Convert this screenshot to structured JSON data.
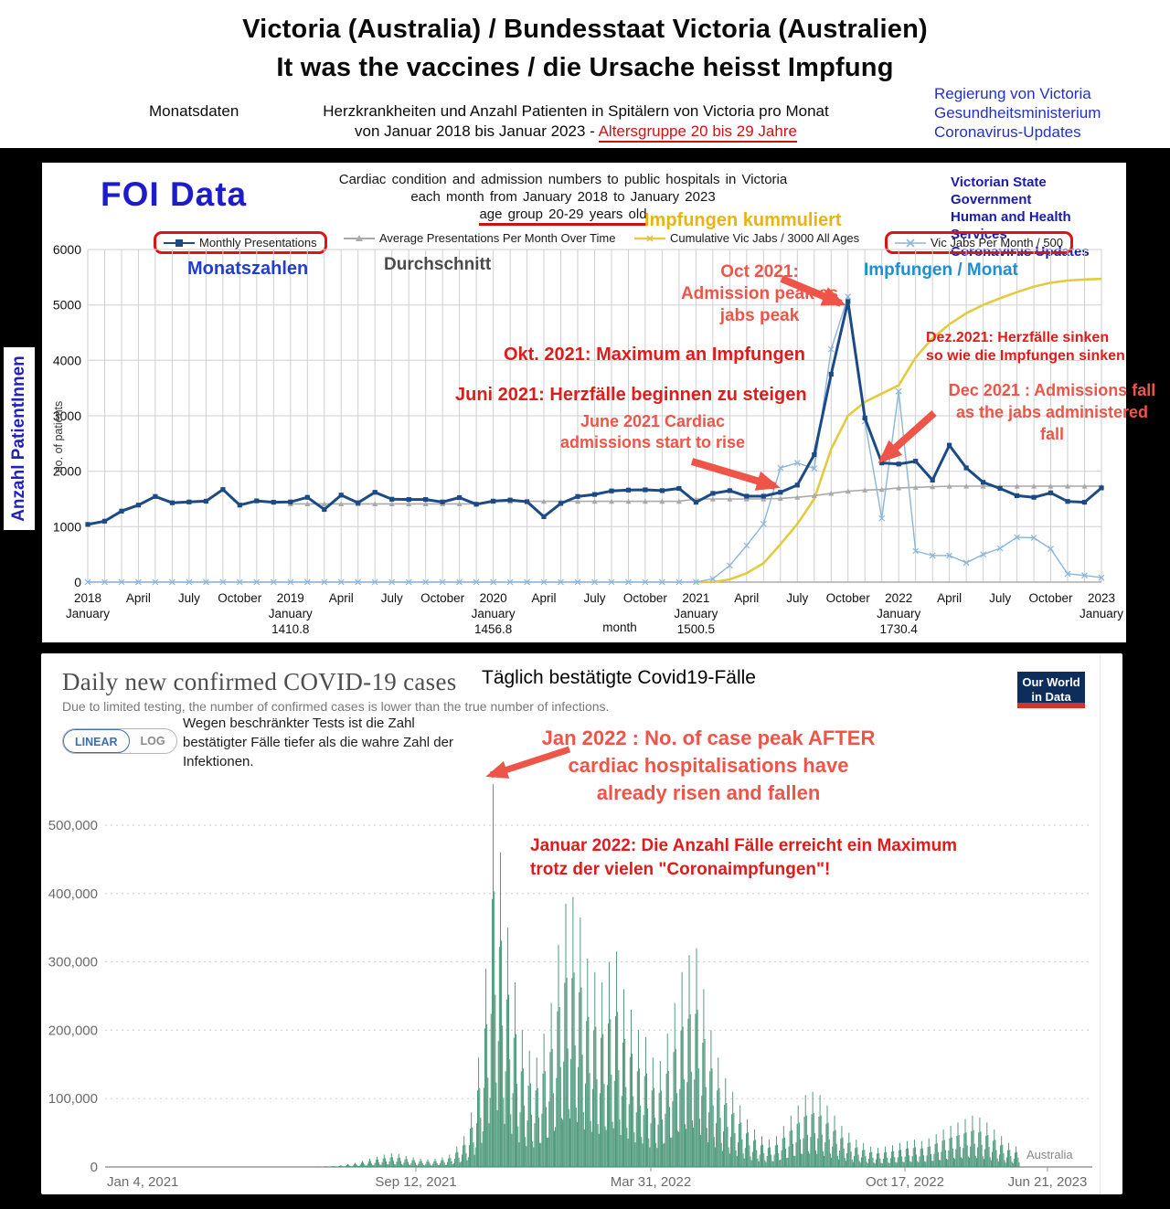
{
  "header": {
    "title_line1": "Victoria (Australia) / Bundesstaat Victoria (Australien)",
    "title_line2": "It was the vaccines / die Ursache heisst Impfung",
    "left_label": "Monatsdaten",
    "center_line1": "Herzkrankheiten und Anzahl Patienten in Spitälern von Victoria pro Monat",
    "center_line2_prefix": "von Januar 2018 bis Januar 2023 - ",
    "center_line2_red": "Altersgruppe 20 bis 29 Jahre",
    "right_lines": [
      "Regierung von Victoria",
      "Gesundheitsministerium",
      "Coronavirus-Updates"
    ]
  },
  "chart1": {
    "foi_label": "FOI Data",
    "title_lines": [
      "Cardiac condition and admission numbers to public hospitals in Victoria",
      "each month from January 2018 to January 2023",
      "age group 20-29 years old"
    ],
    "gov_lines": [
      "Victorian State Government",
      "Human and Health Services",
      "Coronavirus Updates"
    ],
    "impfungen_kummuliert": "Impfungen kummuliert",
    "legend": [
      {
        "label": "Monthly Presentations",
        "color": "#1b4a85",
        "boxed": true
      },
      {
        "label": "Average Presentations Per Month Over Time",
        "color": "#a9a9a9",
        "boxed": false
      },
      {
        "label": "Cumulative Vic Jabs / 3000 All Ages",
        "color": "#e3cb3f",
        "boxed": false
      },
      {
        "label": "Vic Jabs Per Month / 500",
        "color": "#8ab6d8",
        "boxed": true
      }
    ],
    "plot_labels": {
      "monatszahlen": "Monatszahlen",
      "durchschnitt": "Durchschnitt",
      "impfungen_monat": "Impfungen / Monat"
    },
    "annotations": {
      "oct_en": [
        "Oct 2021:",
        "Admission peak as",
        "jabs peak"
      ],
      "okt_de": "Okt. 2021: Maximum an Impfungen",
      "juni_de": "Juni 2021: Herzfälle beginnen zu steigen",
      "june_en": [
        "June 2021 Cardiac",
        "admissions start to rise"
      ],
      "dez_de": [
        "Dez.2021: Herzfälle sinken",
        "so wie die Impfungen sinken"
      ],
      "dec_en": [
        "Dec 2021 : Admissions fall",
        "as the jabs administered",
        "fall"
      ]
    },
    "left_vertical_label": "Anzahl PatientInnen"
  },
  "chart2": {
    "title": "Daily new confirmed COVID-19 cases",
    "title_de": "Täglich bestätigte Covid19-Fälle",
    "subtitle": "Due to limited testing, the number of confirmed cases is lower than the true number of infections.",
    "note_de": "Wegen beschränkter Tests ist die Zahl bestätigter Fälle tiefer als die wahre Zahl der Infektionen.",
    "owid_logo": [
      "Our World",
      "in Data"
    ],
    "toggle": {
      "linear": "LINEAR",
      "log": "LOG"
    },
    "annotations": {
      "jan_en": [
        "Jan 2022 : No. of case peak AFTER",
        "cardiac hospitalisations have",
        "already risen and fallen"
      ],
      "jan_de": [
        "Januar 2022: Die Anzahl Fälle erreicht ein Maximum",
        "trotz der vielen \"Coronaimpfungen\"!"
      ]
    }
  },
  "chart_data": [
    {
      "type": "line",
      "title": "Cardiac condition and admission numbers to public hospitals in Victoria each month from January 2018 to January 2023, age group 20-29 years old",
      "xlabel": "month",
      "ylabel": "no. of patients",
      "ylim": [
        0,
        6000
      ],
      "y_ticks": [
        0,
        1000,
        2000,
        3000,
        4000,
        5000,
        6000
      ],
      "x_months": [
        "2018-01",
        "2018-02",
        "2018-03",
        "2018-04",
        "2018-05",
        "2018-06",
        "2018-07",
        "2018-08",
        "2018-09",
        "2018-10",
        "2018-11",
        "2018-12",
        "2019-01",
        "2019-02",
        "2019-03",
        "2019-04",
        "2019-05",
        "2019-06",
        "2019-07",
        "2019-08",
        "2019-09",
        "2019-10",
        "2019-11",
        "2019-12",
        "2020-01",
        "2020-02",
        "2020-03",
        "2020-04",
        "2020-05",
        "2020-06",
        "2020-07",
        "2020-08",
        "2020-09",
        "2020-10",
        "2020-11",
        "2020-12",
        "2021-01",
        "2021-02",
        "2021-03",
        "2021-04",
        "2021-05",
        "2021-06",
        "2021-07",
        "2021-08",
        "2021-09",
        "2021-10",
        "2021-11",
        "2021-12",
        "2022-01",
        "2022-02",
        "2022-03",
        "2022-04",
        "2022-05",
        "2022-06",
        "2022-07",
        "2022-08",
        "2022-09",
        "2022-10",
        "2022-11",
        "2022-12",
        "2023-01"
      ],
      "x_ticks": [
        {
          "i": 0,
          "l1": "2018",
          "l2": "January"
        },
        {
          "i": 3,
          "l1": "April"
        },
        {
          "i": 6,
          "l1": "July"
        },
        {
          "i": 9,
          "l1": "October"
        },
        {
          "i": 12,
          "l1": "2019",
          "l2": "January",
          "l3": "1410.8"
        },
        {
          "i": 15,
          "l1": "April"
        },
        {
          "i": 18,
          "l1": "July"
        },
        {
          "i": 21,
          "l1": "October"
        },
        {
          "i": 24,
          "l1": "2020",
          "l2": "January",
          "l3": "1456.8"
        },
        {
          "i": 27,
          "l1": "April"
        },
        {
          "i": 30,
          "l1": "July"
        },
        {
          "i": 33,
          "l1": "October"
        },
        {
          "i": 36,
          "l1": "2021",
          "l2": "January",
          "l3": "1500.5"
        },
        {
          "i": 39,
          "l1": "April"
        },
        {
          "i": 42,
          "l1": "July"
        },
        {
          "i": 45,
          "l1": "October"
        },
        {
          "i": 48,
          "l1": "2022",
          "l2": "January",
          "l3": "1730.4"
        },
        {
          "i": 51,
          "l1": "April"
        },
        {
          "i": 54,
          "l1": "July"
        },
        {
          "i": 57,
          "l1": "October"
        },
        {
          "i": 60,
          "l1": "2023",
          "l2": "January"
        }
      ],
      "series": [
        {
          "name": "Monthly Presentations",
          "color": "#1b4a85",
          "values": [
            1040,
            1100,
            1280,
            1390,
            1545,
            1430,
            1445,
            1460,
            1670,
            1390,
            1465,
            1440,
            1445,
            1530,
            1310,
            1570,
            1430,
            1620,
            1495,
            1490,
            1490,
            1445,
            1525,
            1405,
            1460,
            1480,
            1450,
            1180,
            1420,
            1545,
            1580,
            1645,
            1660,
            1665,
            1650,
            1690,
            1440,
            1600,
            1650,
            1550,
            1550,
            1620,
            1750,
            2300,
            3750,
            5060,
            2960,
            2150,
            2130,
            2180,
            1840,
            2470,
            2060,
            1800,
            1690,
            1560,
            1530,
            1610,
            1455,
            1440,
            1700
          ]
        },
        {
          "name": "Average Presentations Per Month Over Time",
          "color": "#a9a9a9",
          "values": [
            null,
            null,
            null,
            null,
            null,
            null,
            null,
            null,
            null,
            null,
            null,
            null,
            1411,
            1411,
            1411,
            1411,
            1411,
            1411,
            1411,
            1411,
            1411,
            1411,
            1411,
            1411,
            1457,
            1457,
            1457,
            1457,
            1457,
            1457,
            1457,
            1457,
            1457,
            1457,
            1457,
            1457,
            1500,
            1500,
            1500,
            1500,
            1500,
            1510,
            1530,
            1560,
            1600,
            1640,
            1660,
            1670,
            1700,
            1710,
            1720,
            1730,
            1730,
            1730,
            1730,
            1730,
            1730,
            1730,
            1730,
            1730,
            1730
          ]
        },
        {
          "name": "Cumulative Vic Jabs / 3000 All Ages",
          "color": "#e3cb3f",
          "values": [
            null,
            null,
            null,
            null,
            null,
            null,
            null,
            null,
            null,
            null,
            null,
            null,
            null,
            null,
            null,
            null,
            null,
            null,
            null,
            null,
            null,
            null,
            null,
            null,
            null,
            null,
            null,
            null,
            null,
            null,
            null,
            null,
            null,
            null,
            null,
            null,
            0,
            0,
            50,
            160,
            340,
            680,
            1050,
            1500,
            2400,
            3000,
            3250,
            3400,
            3550,
            4050,
            4400,
            4650,
            4850,
            5000,
            5120,
            5230,
            5330,
            5400,
            5440,
            5460,
            5470
          ]
        },
        {
          "name": "Vic Jabs Per Month / 500",
          "color": "#8ab6d8",
          "values": [
            0,
            0,
            0,
            0,
            0,
            0,
            0,
            0,
            0,
            0,
            0,
            0,
            0,
            0,
            0,
            0,
            0,
            0,
            0,
            0,
            0,
            0,
            0,
            0,
            0,
            0,
            0,
            0,
            0,
            0,
            0,
            0,
            0,
            0,
            0,
            0,
            0,
            60,
            300,
            660,
            1050,
            2060,
            2150,
            2050,
            4200,
            5150,
            2900,
            1150,
            3440,
            560,
            480,
            480,
            350,
            500,
            610,
            810,
            800,
            600,
            150,
            120,
            80
          ]
        }
      ],
      "averages_by_year": {
        "2019": 1410.8,
        "2020": 1456.8,
        "2021": 1500.5,
        "2022": 1730.4
      }
    },
    {
      "type": "bar",
      "title": "Daily new confirmed COVID-19 cases",
      "entity": "Australia",
      "ylim": [
        0,
        500000
      ],
      "y_tick_labels": [
        "0",
        "100,000",
        "200,000",
        "300,000",
        "400,000",
        "500,000"
      ],
      "x_tick_labels": [
        "Jan 4, 2021",
        "Sep 12, 2021",
        "Mar 31, 2022",
        "Oct 17, 2022",
        "Jun 21, 2023"
      ],
      "start_date": "Jan 4, 2021",
      "weekday_profile": [
        0.18,
        0.4,
        0.7,
        1.0,
        0.72,
        0.45,
        0.22
      ],
      "weekly_peaks": [
        10,
        10,
        10,
        10,
        10,
        10,
        10,
        10,
        10,
        10,
        10,
        10,
        10,
        15,
        15,
        15,
        15,
        20,
        20,
        25,
        25,
        30,
        40,
        60,
        80,
        100,
        150,
        250,
        400,
        600,
        900,
        1500,
        2500,
        4000,
        6000,
        9000,
        12000,
        15000,
        18000,
        20000,
        19000,
        16000,
        14000,
        12000,
        11000,
        12000,
        14000,
        18000,
        30000,
        45000,
        80000,
        160000,
        290000,
        560000,
        460000,
        350000,
        270000,
        200000,
        170000,
        160000,
        195000,
        240000,
        325000,
        385000,
        395000,
        365000,
        305000,
        285000,
        270000,
        300000,
        315000,
        260000,
        230000,
        200000,
        190000,
        160000,
        155000,
        195000,
        240000,
        285000,
        310000,
        320000,
        260000,
        200000,
        160000,
        130000,
        110000,
        90000,
        70000,
        55000,
        45000,
        40000,
        45000,
        60000,
        75000,
        90000,
        105000,
        110000,
        105000,
        90000,
        75000,
        60000,
        50000,
        40000,
        35000,
        30000,
        28000,
        30000,
        32000,
        35000,
        38000,
        40000,
        38000,
        42000,
        48000,
        55000,
        60000,
        65000,
        70000,
        75000,
        72000,
        65000,
        55000,
        45000,
        35000,
        30000
      ],
      "bar_color": "#3d8f6f"
    }
  ]
}
